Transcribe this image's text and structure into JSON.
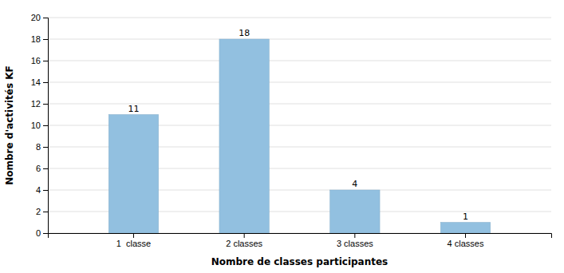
{
  "chart_data": {
    "type": "bar",
    "categories": [
      "1  classe",
      "2 classes",
      "3 classes",
      "4 classes"
    ],
    "values": [
      11,
      18,
      4,
      1
    ],
    "color": "#92c0e0",
    "xlabel": "Nombre de classes participantes",
    "ylabel": "Nombre d'activités KF",
    "ylim": [
      0,
      20
    ],
    "yticks": [
      0,
      2,
      4,
      6,
      8,
      10,
      12,
      14,
      16,
      18,
      20
    ],
    "grid": true,
    "data_labels": true
  }
}
